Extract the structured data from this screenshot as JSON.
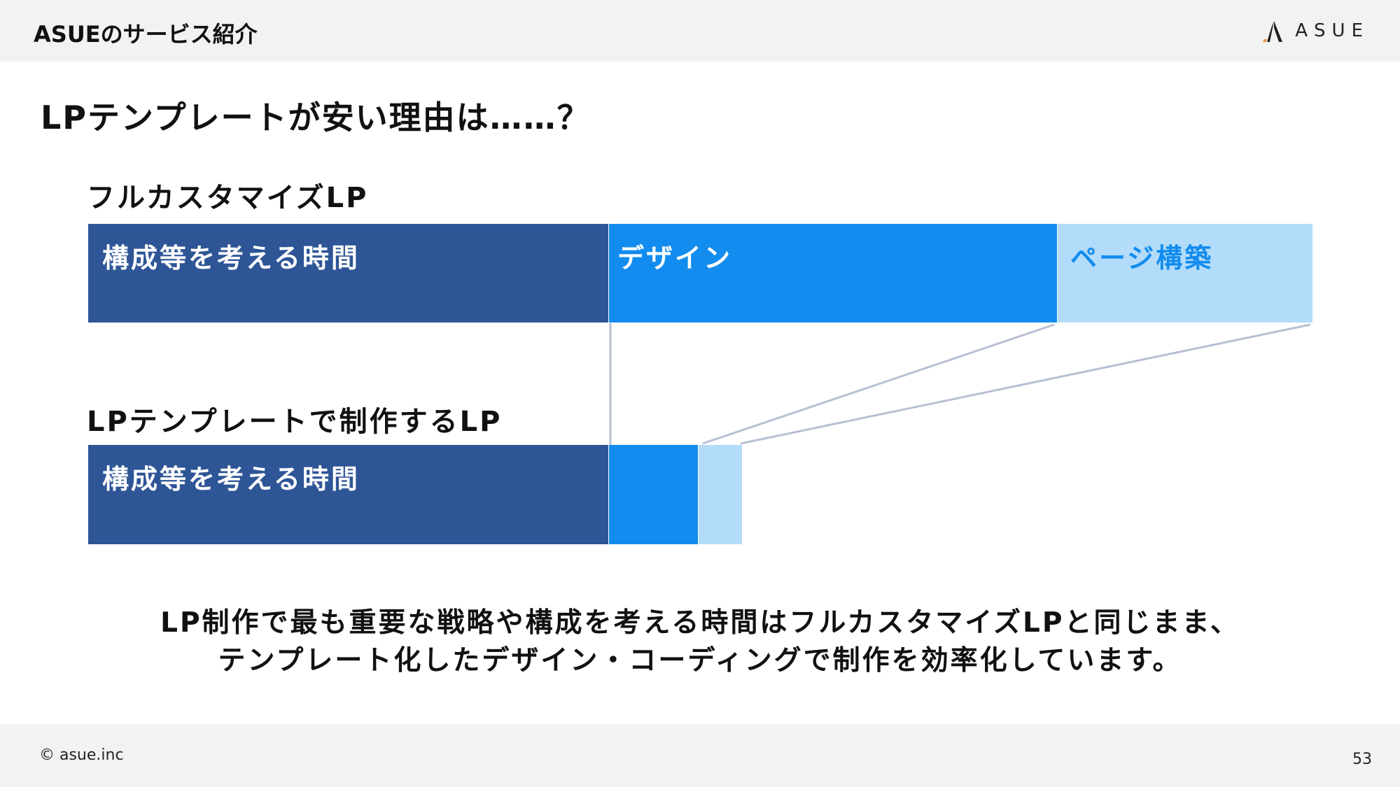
{
  "header": {
    "title": "ASUEのサービス紹介",
    "logo_text": "ASUE"
  },
  "slide": {
    "title": "LPテンプレートが安い理由は……？"
  },
  "full_custom": {
    "label": "フルカスタマイズLP",
    "segments": {
      "planning": "構成等を考える時間",
      "design": "デザイン",
      "build": "ページ構築"
    }
  },
  "template": {
    "label": "LPテンプレートで制作するLP",
    "segments": {
      "planning": "構成等を考える時間"
    }
  },
  "conclusion": {
    "line1": "LP制作で最も重要な戦略や構成を考える時間はフルカスタマイズLPと同じまま、",
    "line2": "テンプレート化したデザイン・コーディングで制作を効率化しています。"
  },
  "footer": {
    "copyright": "© asue.inc",
    "page_number": "53"
  },
  "colors": {
    "planning": "#2e5596",
    "design": "#128cee",
    "build": "#b3dcfa",
    "connector": "#b8bfd6"
  }
}
